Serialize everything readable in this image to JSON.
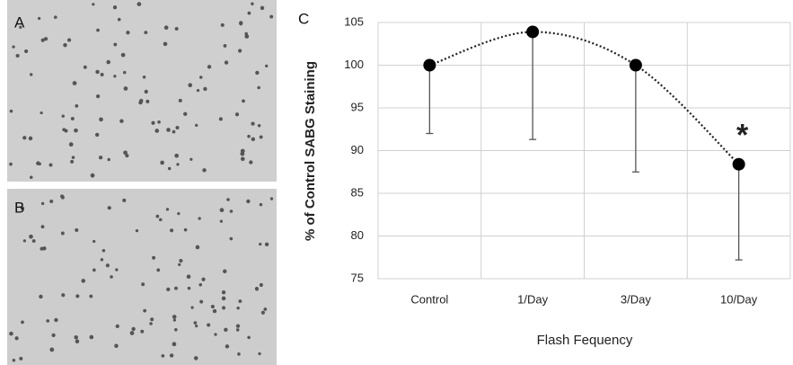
{
  "panel_labels": [
    "A",
    "B",
    "C"
  ],
  "chart_data": {
    "type": "errorpoint",
    "x_label": "Flash Fequency",
    "y_label": "% of Control SABG Staining",
    "categories": [
      "Control",
      "1/Day",
      "3/Day",
      "10/Day"
    ],
    "series": [
      {
        "color": "#000000",
        "values": [
          100,
          103.9,
          100,
          88.4
        ],
        "errors": [
          8,
          12.6,
          12.5,
          11.2
        ]
      }
    ],
    "annotations": [
      {
        "text": "*",
        "category": 3
      }
    ],
    "ylim": [
      75,
      105
    ],
    "yticks": [
      75,
      80,
      85,
      90,
      95,
      100,
      105
    ],
    "grid": true,
    "trendline": "dotted"
  }
}
